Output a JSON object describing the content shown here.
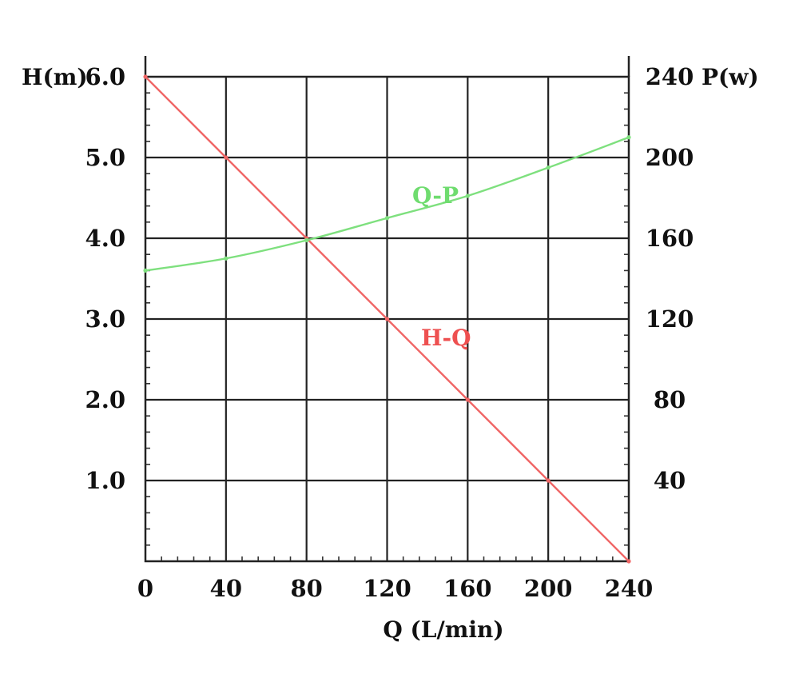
{
  "chart_data": {
    "type": "line",
    "title": "",
    "xlabel": "Q (L/min)",
    "ylabel_left": "H(m)",
    "ylabel_right": "P(w)",
    "x_range": [
      0,
      240
    ],
    "y_left_range": [
      0,
      6.0
    ],
    "y_right_range": [
      0,
      240
    ],
    "x_ticks": [
      0,
      40,
      80,
      120,
      160,
      200,
      240
    ],
    "x_tick_labels": [
      "0",
      "40",
      "80",
      "120",
      "160",
      "200",
      "240"
    ],
    "y_left_ticks": [
      1.0,
      2.0,
      3.0,
      4.0,
      5.0,
      6.0
    ],
    "y_left_tick_labels": [
      "1.0",
      "2.0",
      "3.0",
      "4.0",
      "5.0",
      "6.0"
    ],
    "y_right_ticks": [
      40,
      80,
      120,
      160,
      200,
      240
    ],
    "y_right_tick_labels": [
      "40",
      "80",
      "120",
      "160",
      "200",
      "240"
    ],
    "grid": true,
    "series": [
      {
        "name": "H-Q",
        "axis": "left",
        "color": "#f06666",
        "x": [
          0,
          40,
          80,
          120,
          160,
          200,
          240
        ],
        "y": [
          6.0,
          5.0,
          4.0,
          3.0,
          2.0,
          1.0,
          0.0
        ]
      },
      {
        "name": "Q-P",
        "axis": "right",
        "color": "#7ee07e",
        "x": [
          0,
          40,
          80,
          120,
          160,
          200,
          240
        ],
        "y": [
          144,
          150,
          159,
          170,
          181,
          195,
          210
        ]
      }
    ]
  }
}
